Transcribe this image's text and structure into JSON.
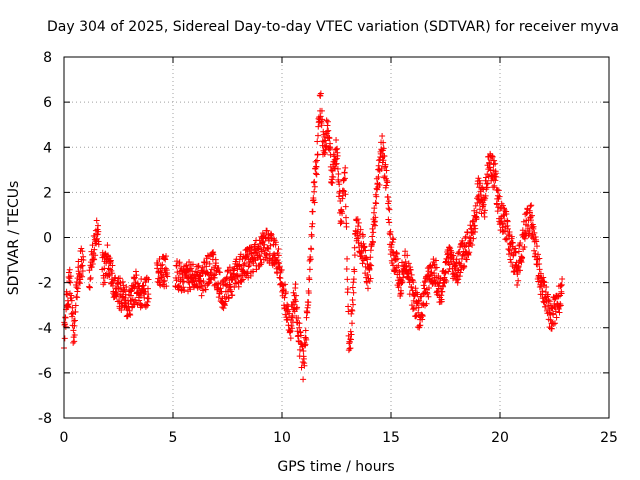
{
  "chart_data": {
    "type": "scatter",
    "title": "Day 304 of 2025, Sidereal Day-to-day VTEC variation (SDTVAR) for receiver myva",
    "xlabel": "GPS time / hours",
    "ylabel": "SDTVAR / TECUs",
    "xlim": [
      0,
      25
    ],
    "ylim": [
      -8,
      8
    ],
    "xticks": [
      "0",
      "5",
      "10",
      "15",
      "20",
      "25"
    ],
    "yticks": [
      "-8",
      "-6",
      "-4",
      "-2",
      "0",
      "2",
      "4",
      "6",
      "8"
    ],
    "grid": true,
    "marker": "+",
    "color": "#ff0000",
    "series": [
      {
        "name": "SDTVAR",
        "profile_x": [
          0,
          0.15,
          0.3,
          0.45,
          0.6,
          0.8,
          1.2,
          1.4,
          1.5,
          1.8,
          2.0,
          2.3,
          2.6,
          3.0,
          3.3,
          3.6,
          4.3,
          4.6,
          5.2,
          5.6,
          6.0,
          6.3,
          6.8,
          7.3,
          7.6,
          8.0,
          8.4,
          8.8,
          9.2,
          9.5,
          9.8,
          10.0,
          10.2,
          10.4,
          10.6,
          10.8,
          11.0,
          11.2,
          11.4,
          11.6,
          11.75,
          11.9,
          12.1,
          12.3,
          12.5,
          12.7,
          12.9,
          13.0,
          13.1,
          13.2,
          13.4,
          13.7,
          14.0,
          14.3,
          14.6,
          14.8,
          15.0,
          15.2,
          15.4,
          15.7,
          16.0,
          16.3,
          16.7,
          17.0,
          17.3,
          17.6,
          18.0,
          18.4,
          18.8,
          19.0,
          19.3,
          19.5,
          19.8,
          20.0,
          20.2,
          20.5,
          20.8,
          21.1,
          21.4,
          21.7,
          22.0,
          22.3,
          22.6,
          22.85
        ],
        "profile_y": [
          -4.5,
          -2.5,
          -2.0,
          -4.5,
          -2.0,
          -1.0,
          -1.8,
          -0.2,
          0.2,
          -1.5,
          -1.0,
          -2.2,
          -2.5,
          -3.0,
          -2.2,
          -2.6,
          -1.7,
          -1.5,
          -1.6,
          -1.8,
          -1.5,
          -1.9,
          -1.2,
          -2.5,
          -2.0,
          -1.5,
          -1.2,
          -0.8,
          -0.3,
          -0.5,
          -1.0,
          -2.0,
          -3.0,
          -3.8,
          -2.5,
          -4.5,
          -5.8,
          -3.0,
          1.0,
          3.5,
          6.3,
          4.0,
          5.0,
          2.5,
          4.0,
          1.0,
          2.5,
          -2.0,
          -5.5,
          -3.5,
          0.5,
          -0.5,
          -2.0,
          1.5,
          4.0,
          2.5,
          -0.5,
          -1.0,
          -2.0,
          -1.0,
          -2.5,
          -3.5,
          -2.0,
          -1.5,
          -2.5,
          -1.0,
          -1.5,
          -0.5,
          0.5,
          2.0,
          1.5,
          3.5,
          2.5,
          1.0,
          0.8,
          -0.5,
          -1.5,
          0.2,
          1.0,
          -1.0,
          -2.5,
          -3.5,
          -3.0,
          -2.5
        ],
        "spread": 0.7
      }
    ]
  }
}
